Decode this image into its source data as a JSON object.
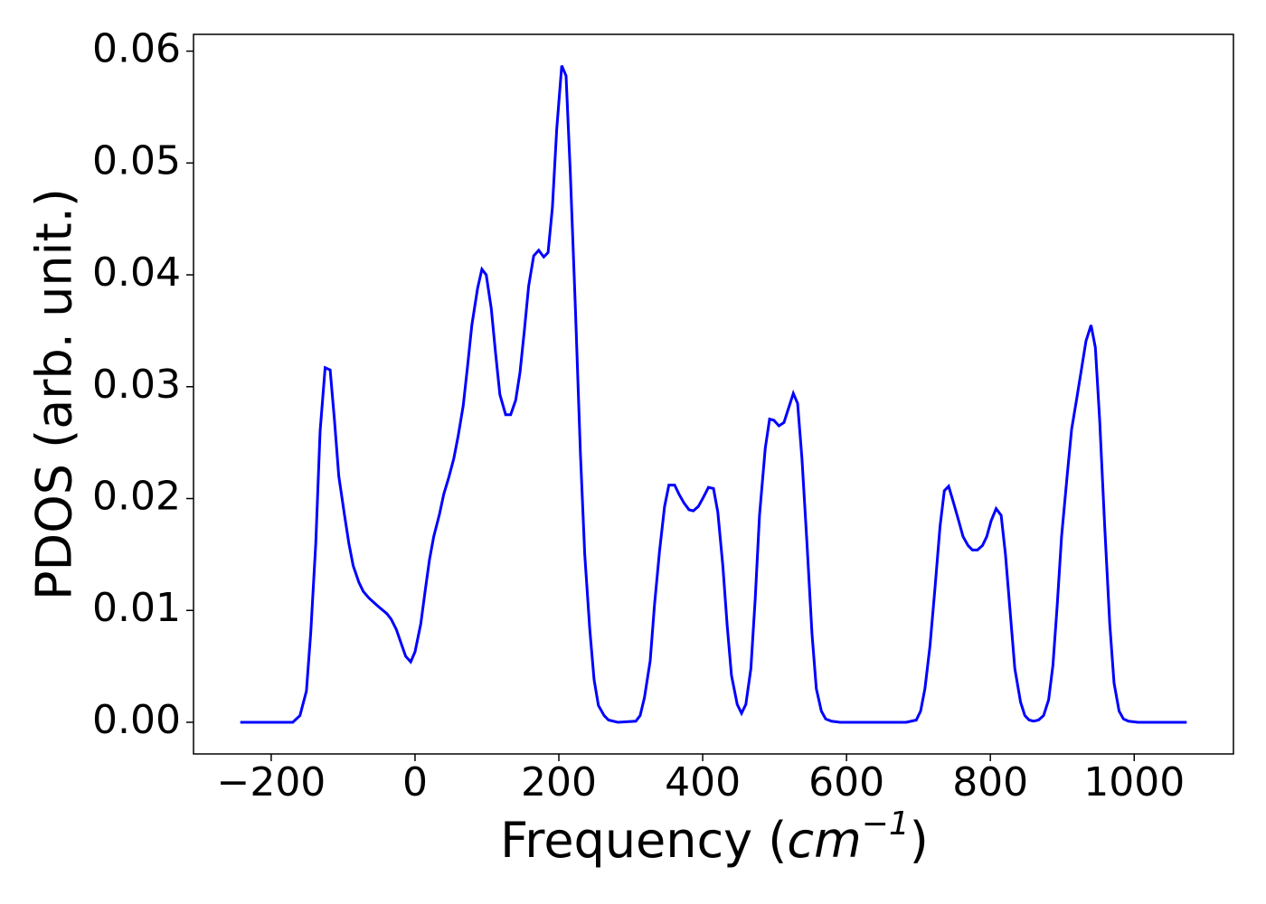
{
  "chart_data": {
    "type": "line",
    "xlabel": [
      "Frequency (",
      "cm",
      "−1",
      ")"
    ],
    "ylabel": "PDOS (arb. unit.)",
    "xlim": [
      -308,
      1138
    ],
    "ylim": [
      -0.00283,
      0.0615
    ],
    "xticks": [
      {
        "value": -200,
        "label": "−200"
      },
      0,
      200,
      400,
      600,
      800,
      1000
    ],
    "yticks": [
      {
        "value": 0,
        "label": "0.00"
      },
      {
        "value": 0.01,
        "label": "0.01"
      },
      {
        "value": 0.02,
        "label": "0.02"
      },
      {
        "value": 0.03,
        "label": "0.03"
      },
      {
        "value": 0.04,
        "label": "0.04"
      },
      {
        "value": 0.05,
        "label": "0.05"
      },
      {
        "value": 0.06,
        "label": "0.06"
      }
    ],
    "x": [
      -243,
      -170,
      -160,
      -151,
      -145,
      -138,
      -132,
      -125,
      -118,
      -112,
      -106,
      -98,
      -92,
      -86,
      -78,
      -72,
      -64,
      -52,
      -39,
      -33,
      -26,
      -19,
      -13,
      -6,
      0,
      8,
      14,
      20,
      26,
      34,
      40,
      47,
      54,
      60,
      67,
      73,
      79,
      87,
      93,
      99,
      106,
      112,
      118,
      126,
      133,
      140,
      146,
      152,
      158,
      165,
      172,
      179,
      185,
      191,
      197,
      204,
      210,
      216,
      223,
      230,
      236,
      243,
      249,
      255,
      263,
      269,
      282,
      307,
      313,
      319,
      327,
      333,
      340,
      347,
      353,
      361,
      367,
      374,
      381,
      387,
      394,
      400,
      408,
      415,
      421,
      428,
      434,
      440,
      448,
      454,
      460,
      467,
      473,
      479,
      487,
      493,
      499,
      506,
      513,
      519,
      526,
      532,
      538,
      545,
      552,
      558,
      565,
      571,
      579,
      591,
      683,
      697,
      703,
      709,
      716,
      723,
      730,
      736,
      742,
      748,
      756,
      762,
      769,
      775,
      782,
      789,
      795,
      801,
      808,
      815,
      821,
      828,
      834,
      842,
      848,
      854,
      860,
      867,
      874,
      881,
      887,
      893,
      899,
      907,
      913,
      920,
      926,
      933,
      940,
      946,
      952,
      959,
      966,
      972,
      979,
      985,
      992,
      1005,
      1073
    ],
    "series": [
      {
        "name": "PDOS",
        "color": "#0000ff",
        "values": [
          0,
          0,
          0.0006,
          0.0028,
          0.008,
          0.016,
          0.026,
          0.0317,
          0.0315,
          0.027,
          0.022,
          0.0185,
          0.016,
          0.014,
          0.0125,
          0.0117,
          0.0111,
          0.0104,
          0.0097,
          0.0092,
          0.0083,
          0.007,
          0.0059,
          0.0054,
          0.0063,
          0.0088,
          0.0117,
          0.0145,
          0.0166,
          0.0186,
          0.0204,
          0.0219,
          0.0236,
          0.0256,
          0.0283,
          0.0318,
          0.0355,
          0.0388,
          0.0405,
          0.04,
          0.037,
          0.033,
          0.0293,
          0.0275,
          0.0275,
          0.0288,
          0.0313,
          0.035,
          0.039,
          0.0417,
          0.0422,
          0.0416,
          0.042,
          0.046,
          0.053,
          0.0587,
          0.0578,
          0.049,
          0.037,
          0.024,
          0.015,
          0.0083,
          0.0038,
          0.0015,
          0.0006,
          0.0002,
          0,
          0.0001,
          0.0006,
          0.0022,
          0.0055,
          0.0105,
          0.0153,
          0.0193,
          0.0212,
          0.0212,
          0.0204,
          0.0196,
          0.019,
          0.0189,
          0.0193,
          0.02,
          0.021,
          0.0209,
          0.0188,
          0.014,
          0.0087,
          0.0042,
          0.0016,
          0.0008,
          0.0016,
          0.0048,
          0.011,
          0.0185,
          0.0245,
          0.0271,
          0.027,
          0.0265,
          0.0268,
          0.028,
          0.0294,
          0.0285,
          0.0236,
          0.016,
          0.0079,
          0.003,
          0.001,
          0.0003,
          0.0001,
          0,
          0,
          0.0002,
          0.001,
          0.003,
          0.0068,
          0.012,
          0.0175,
          0.0207,
          0.0211,
          0.0198,
          0.018,
          0.0166,
          0.0158,
          0.0154,
          0.0154,
          0.0158,
          0.0166,
          0.018,
          0.0191,
          0.0185,
          0.015,
          0.0095,
          0.0048,
          0.0018,
          0.0006,
          0.0002,
          0.0001,
          0.0002,
          0.0006,
          0.002,
          0.0051,
          0.0105,
          0.0166,
          0.0222,
          0.0262,
          0.0289,
          0.0313,
          0.0341,
          0.0355,
          0.0335,
          0.027,
          0.0175,
          0.0088,
          0.0035,
          0.001,
          0.0003,
          0.0001,
          0,
          0
        ]
      }
    ]
  }
}
